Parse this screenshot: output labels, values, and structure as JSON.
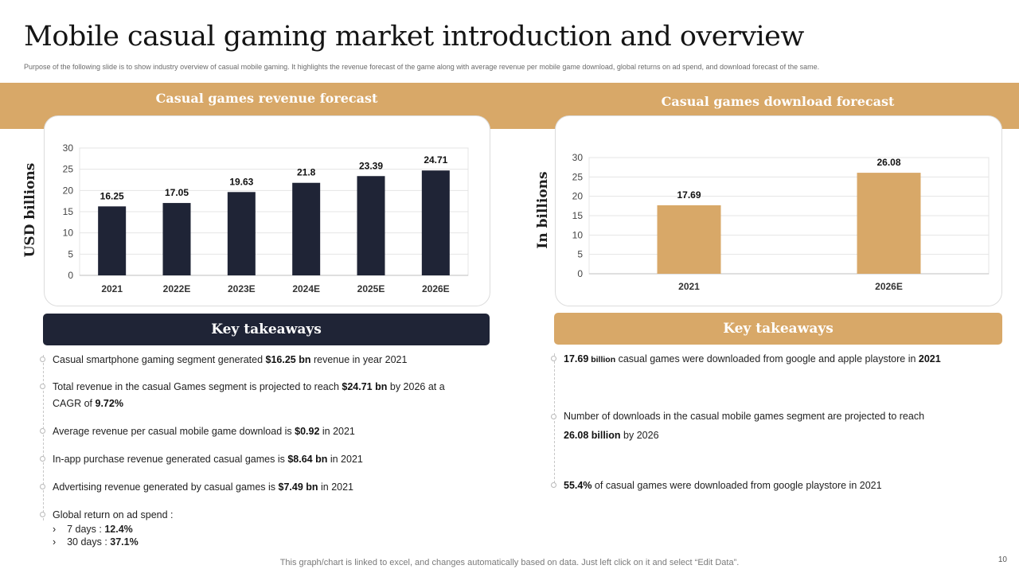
{
  "slide": {
    "title": "Mobile casual gaming market introduction and overview",
    "subtitle": "Purpose of the following slide is to show  industry overview of casual mobile gaming.  It highlights the revenue forecast of the game along with average revenue per mobile game download, global returns on ad spend, and download forecast of the same.",
    "footer": "This graph/chart is linked to excel,  and changes automatically based on data. Just left click on it and select “Edit Data”.",
    "page_number": "10"
  },
  "colors": {
    "accent": "#d8a868",
    "dark": "#1f2436",
    "text": "#1e1e1e"
  },
  "left_panel": {
    "title": "Casual games revenue forecast",
    "y_axis_label": "USD billions",
    "key_takeaways_label": "Key takeaways",
    "bullets": [
      {
        "pre": "Casual smartphone gaming segment generated ",
        "b1": "$16.25 bn",
        "post": " revenue in year 2021",
        "b2": ""
      },
      {
        "pre": "Total revenue  in the casual Games segment is projected to reach ",
        "b1": "$24.71 bn",
        "post": " by 2026 at a CAGR of ",
        "b2": "9.72%"
      },
      {
        "pre": "Average  revenue  per casual mobile game download  is ",
        "b1": "$0.92",
        "post": " in 2021",
        "b2": ""
      },
      {
        "pre": "In-app  purchase revenue  generated casual games is ",
        "b1": "$8.64 bn",
        "post": " in 2021",
        "b2": ""
      },
      {
        "pre": "Advertising revenue  generated  by casual games is ",
        "b1": "$7.49  bn",
        "post": " in 2021",
        "b2": ""
      },
      {
        "pre": "Global return on ad spend :",
        "b1": "",
        "post": "",
        "b2": ""
      }
    ],
    "sub_bullets": [
      {
        "marker": "›",
        "text": "7 days : ",
        "bold": "12.4%"
      },
      {
        "marker": "›",
        "text": "30 days : ",
        "bold": "37.1%"
      }
    ]
  },
  "right_panel": {
    "title": "Casual games download forecast",
    "y_axis_label": "In billions",
    "key_takeaways_label": "Key takeaways",
    "bullets": [
      {
        "b1": "17.69",
        "small": " billion",
        "post": "  casual games were downloaded from google and apple playstore in ",
        "b2": "2021"
      },
      {
        "line1": "Number of downloads in the casual mobile games segment are projected to reach",
        "b1": "26.08 billion",
        "post": " by 2026"
      },
      {
        "b1": "55.4%",
        "post": "  of casual games were downloaded from google playstore in 2021"
      }
    ]
  },
  "chart_data": [
    {
      "type": "bar",
      "title": "Casual games revenue forecast",
      "xlabel": "",
      "ylabel": "USD billions",
      "categories": [
        "2021",
        "2022E",
        "2023E",
        "2024E",
        "2025E",
        "2026E"
      ],
      "values": [
        16.25,
        17.05,
        19.63,
        21.8,
        23.39,
        24.71
      ],
      "value_labels": [
        "16.25",
        "17.05",
        "19.63",
        "21.8",
        "23.39",
        "24.71"
      ],
      "ylim": [
        0,
        30
      ],
      "yticks": [
        0,
        5,
        10,
        15,
        20,
        25,
        30
      ],
      "color": "#1f2436",
      "grid": true
    },
    {
      "type": "bar",
      "title": "Casual games download forecast",
      "xlabel": "",
      "ylabel": "In billions",
      "categories": [
        "2021",
        "2026E"
      ],
      "values": [
        17.69,
        26.08
      ],
      "value_labels": [
        "17.69",
        "26.08"
      ],
      "ylim": [
        0,
        30
      ],
      "yticks": [
        0,
        5,
        10,
        15,
        20,
        25,
        30
      ],
      "color": "#d8a868",
      "grid": true
    }
  ]
}
